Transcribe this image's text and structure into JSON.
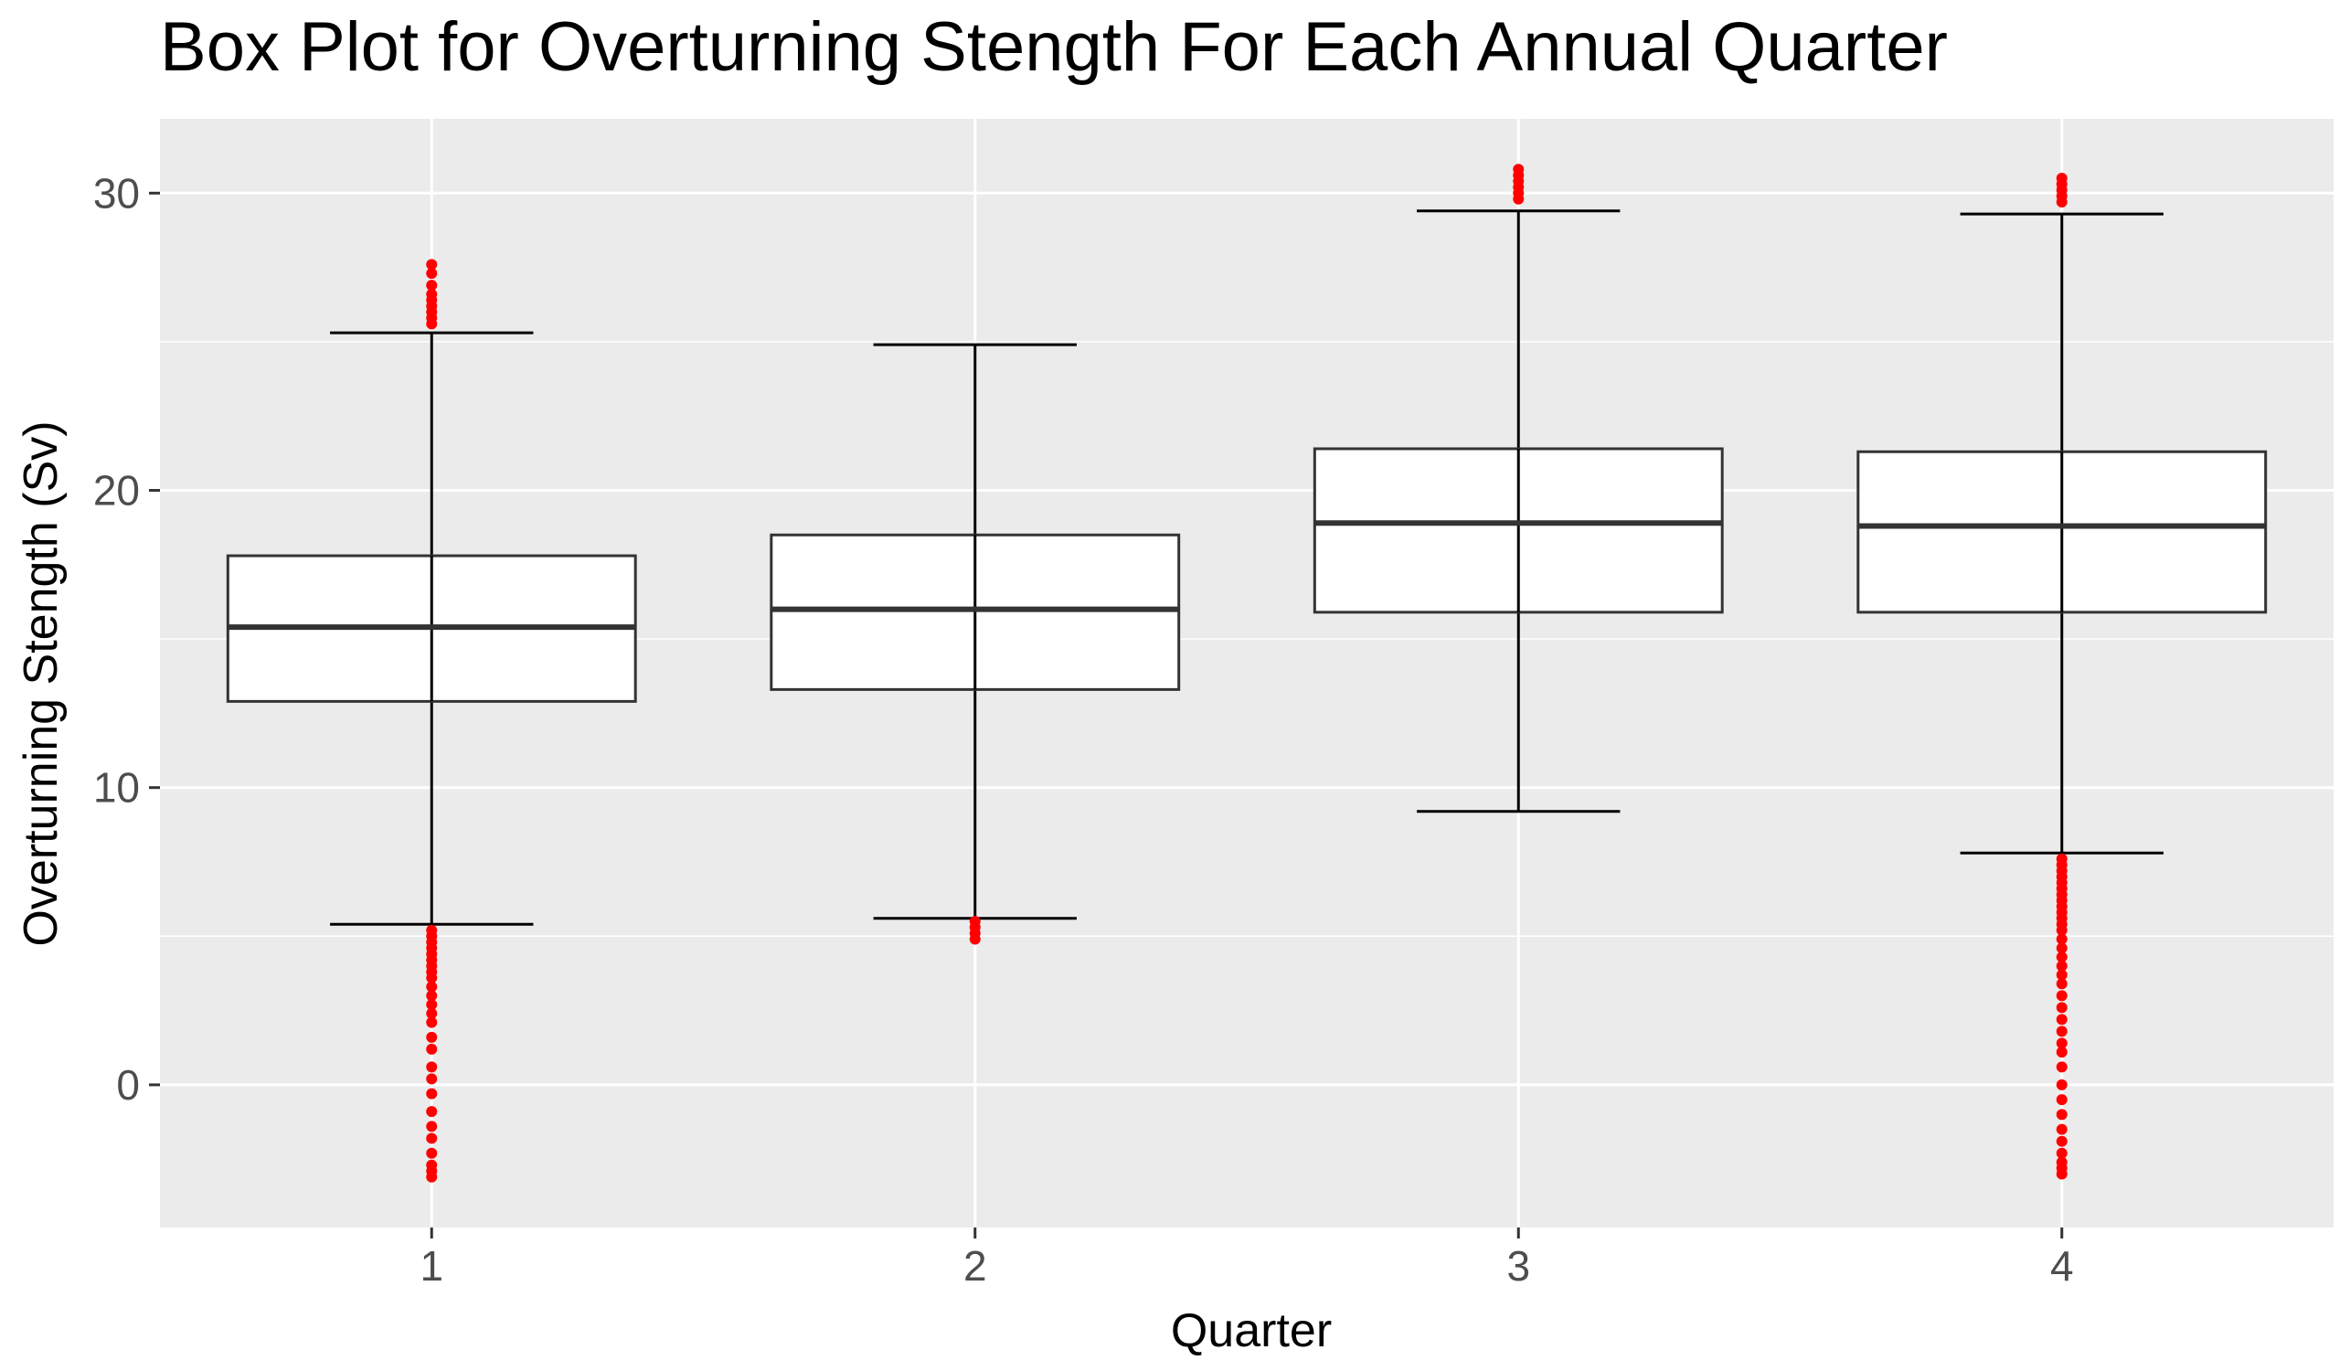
{
  "chart_data": {
    "type": "box",
    "title": "Box Plot for Overturning Stength For Each Annual Quarter",
    "xlabel": "Quarter",
    "ylabel": "Overturning Stength (Sv)",
    "categories": [
      "1",
      "2",
      "3",
      "4"
    ],
    "y_ticks": [
      0,
      10,
      20,
      30
    ],
    "ylim": [
      -4.8,
      32.5
    ],
    "grid": true,
    "legend": "none",
    "colors": {
      "panel": "#EBEBEB",
      "grid": "#FFFFFF",
      "box_fill": "#FFFFFF",
      "box_line": "#333333",
      "whisker": "#000000",
      "outlier": "#FF0000",
      "tick_label": "#4D4D4D",
      "text": "#000000"
    },
    "boxes": [
      {
        "quarter": "1",
        "lower_whisker": 5.4,
        "q1": 12.9,
        "median": 15.4,
        "q3": 17.8,
        "upper_whisker": 25.3,
        "outliers": [
          27.6,
          27.3,
          26.9,
          26.6,
          26.4,
          26.2,
          26.0,
          25.8,
          25.6,
          5.2,
          5.0,
          4.8,
          4.6,
          4.4,
          4.2,
          4.0,
          3.8,
          3.6,
          3.3,
          3.0,
          2.7,
          2.4,
          2.1,
          1.6,
          1.2,
          0.6,
          0.2,
          -0.3,
          -0.9,
          -1.4,
          -1.8,
          -2.3,
          -2.7,
          -2.9,
          -3.1
        ]
      },
      {
        "quarter": "2",
        "lower_whisker": 5.6,
        "q1": 13.3,
        "median": 16.0,
        "q3": 18.5,
        "upper_whisker": 24.9,
        "outliers": [
          5.5,
          5.3,
          5.1,
          4.9
        ]
      },
      {
        "quarter": "3",
        "lower_whisker": 9.2,
        "q1": 15.9,
        "median": 18.9,
        "q3": 21.4,
        "upper_whisker": 29.4,
        "outliers": [
          30.8,
          30.6,
          30.4,
          30.2,
          30.0,
          29.8
        ]
      },
      {
        "quarter": "4",
        "lower_whisker": 7.8,
        "q1": 15.9,
        "median": 18.8,
        "q3": 21.3,
        "upper_whisker": 29.3,
        "outliers": [
          30.5,
          30.3,
          30.1,
          29.9,
          29.7,
          7.6,
          7.4,
          7.2,
          7.0,
          6.8,
          6.6,
          6.4,
          6.2,
          6.0,
          5.8,
          5.6,
          5.4,
          5.2,
          4.9,
          4.6,
          4.3,
          4.0,
          3.7,
          3.4,
          3.0,
          2.6,
          2.2,
          1.8,
          1.4,
          1.1,
          0.6,
          0.0,
          -0.5,
          -1.0,
          -1.5,
          -1.9,
          -2.3,
          -2.6,
          -2.8,
          -3.0
        ]
      }
    ]
  }
}
